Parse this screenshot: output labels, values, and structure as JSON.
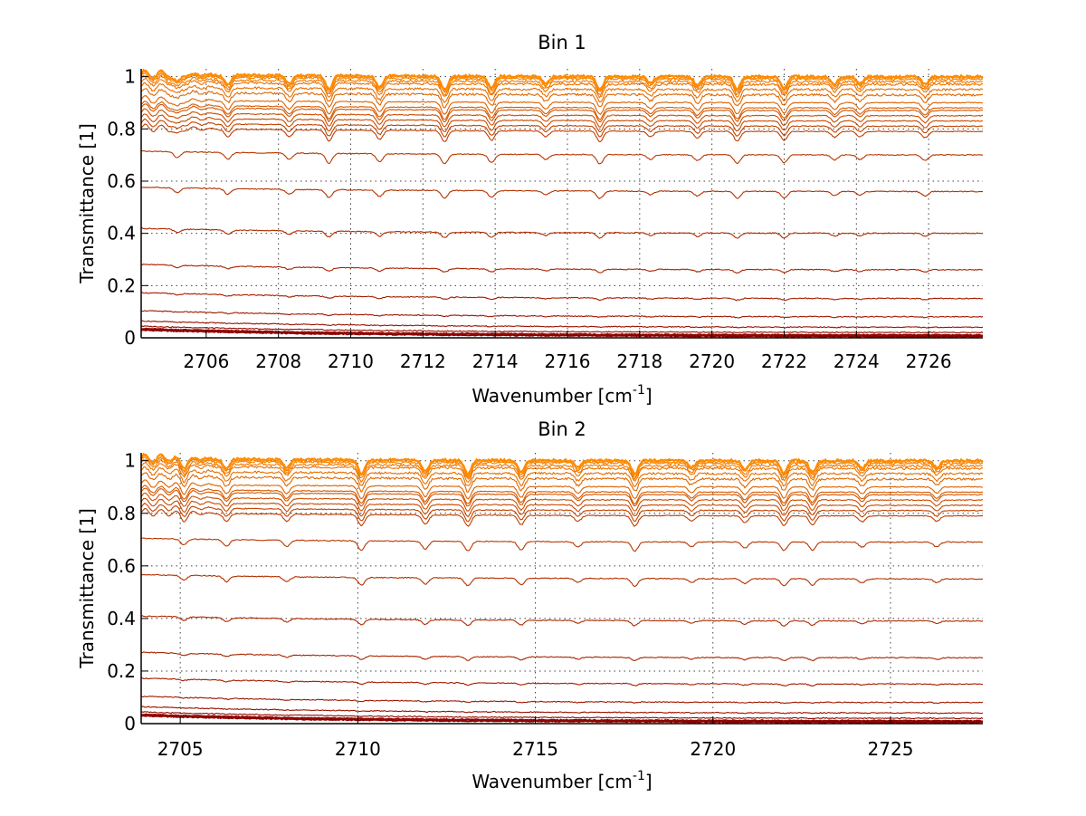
{
  "chart_data": [
    {
      "type": "line",
      "title": "Bin 1",
      "xlabel": "Wavenumber [cm",
      "xlabel_sup": "-1",
      "xlabel_end": "]",
      "ylabel": "Transmittance [1]",
      "xlim": [
        2704.2,
        2727.5
      ],
      "ylim": [
        0,
        1.03
      ],
      "xticks": [
        2706,
        2708,
        2710,
        2712,
        2714,
        2716,
        2718,
        2720,
        2722,
        2724,
        2726
      ],
      "xtick_labels": [
        "2706",
        "2708",
        "2710",
        "2712",
        "2714",
        "2716",
        "2718",
        "2720",
        "2722",
        "2724",
        "2726"
      ],
      "yticks": [
        0,
        0.2,
        0.4,
        0.6,
        0.8,
        1
      ],
      "ytick_labels": [
        "0",
        "0.2",
        "0.4",
        "0.6",
        "0.8",
        "1"
      ],
      "grid": true,
      "series_levels": [
        0.005,
        0.01,
        0.02,
        0.04,
        0.08,
        0.15,
        0.26,
        0.4,
        0.56,
        0.7,
        0.79,
        0.81,
        0.83,
        0.85,
        0.87,
        0.88,
        0.9,
        0.93,
        0.95,
        0.97,
        0.98,
        0.99,
        0.995,
        1.0
      ],
      "absorption_lines": [
        2705.2,
        2706.6,
        2708.3,
        2709.4,
        2710.8,
        2712.6,
        2713.9,
        2715.4,
        2716.9,
        2718.3,
        2719.6,
        2720.7,
        2722.0,
        2723.4,
        2724.1,
        2725.9
      ],
      "colors": [
        "#8b0000",
        "#ff8c00"
      ]
    },
    {
      "type": "line",
      "title": "Bin 2",
      "xlabel": "Wavenumber [cm",
      "xlabel_sup": "-1",
      "xlabel_end": "]",
      "ylabel": "Transmittance [1]",
      "xlim": [
        2703.9,
        2727.6
      ],
      "ylim": [
        0,
        1.03
      ],
      "xticks": [
        2705,
        2710,
        2715,
        2720,
        2725
      ],
      "xtick_labels": [
        "2705",
        "2710",
        "2715",
        "2720",
        "2725"
      ],
      "yticks": [
        0,
        0.2,
        0.4,
        0.6,
        0.8,
        1
      ],
      "ytick_labels": [
        "0",
        "0.2",
        "0.4",
        "0.6",
        "0.8",
        "1"
      ],
      "grid": true,
      "series_levels": [
        0.005,
        0.01,
        0.02,
        0.04,
        0.08,
        0.15,
        0.25,
        0.39,
        0.55,
        0.69,
        0.79,
        0.81,
        0.83,
        0.85,
        0.87,
        0.88,
        0.9,
        0.93,
        0.95,
        0.97,
        0.98,
        0.99,
        0.995,
        1.0
      ],
      "absorption_lines": [
        2705.1,
        2706.3,
        2708.0,
        2710.1,
        2711.9,
        2713.1,
        2714.6,
        2716.2,
        2717.8,
        2719.4,
        2720.9,
        2722.0,
        2722.8,
        2724.2,
        2726.3
      ],
      "colors": [
        "#8b0000",
        "#ff8c00"
      ]
    }
  ]
}
